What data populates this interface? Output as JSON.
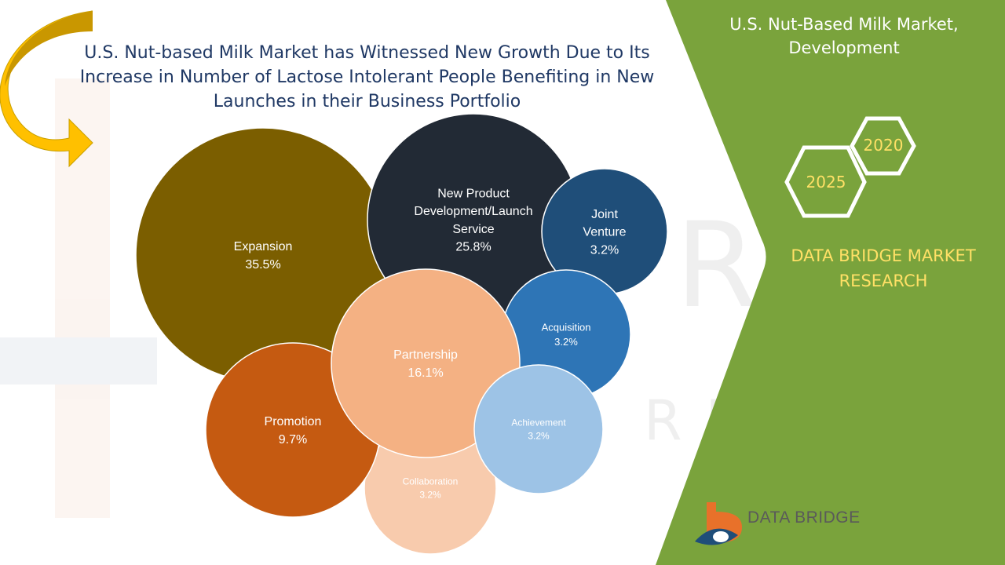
{
  "headline": "U.S. Nut-based Milk Market has Witnessed New Growth Due to Its Increase in Number of Lactose Intolerant People Benefiting in New Launches in their Business Portfolio",
  "panel": {
    "title": "U.S. Nut-Based Milk Market, Development",
    "year_a": "2020",
    "year_b": "2025",
    "brand": "DATA BRIDGE MARKET RESEARCH",
    "logo_text": "DATA BRIDGE"
  },
  "colors": {
    "green_panel": "#7aa33c",
    "headline": "#1f3864",
    "brand_yellow": "#ffe066"
  },
  "icons": [
    "curved-arrow-icon",
    "data-bridge-logo-icon"
  ],
  "chart_data": {
    "type": "bubble",
    "title": "",
    "series": [
      {
        "name": "Expansion",
        "value": 35.5,
        "label": "35.5%",
        "color": "#7b5e00",
        "text_color": "#ffffff"
      },
      {
        "name": "New Product Development/Launch Service",
        "value": 25.8,
        "label": "25.8%",
        "color": "#222a35",
        "text_color": "#ffffff"
      },
      {
        "name": "Partnership",
        "value": 16.1,
        "label": "16.1%",
        "color": "#f4b183",
        "text_color": "#ffffff"
      },
      {
        "name": "Promotion",
        "value": 9.7,
        "label": "9.7%",
        "color": "#c55a11",
        "text_color": "#ffffff"
      },
      {
        "name": "Joint Venture",
        "value": 3.2,
        "label": "3.2%",
        "color": "#1f4e79",
        "text_color": "#ffffff"
      },
      {
        "name": "Acquisition",
        "value": 3.2,
        "label": "3.2%",
        "color": "#2e75b6",
        "text_color": "#ffffff"
      },
      {
        "name": "Achievement",
        "value": 3.2,
        "label": "3.2%",
        "color": "#9dc3e6",
        "text_color": "#ffffff"
      },
      {
        "name": "Collaboration",
        "value": 3.2,
        "label": "3.2%",
        "color": "#f8cbad",
        "text_color": "#ffffff"
      }
    ]
  }
}
